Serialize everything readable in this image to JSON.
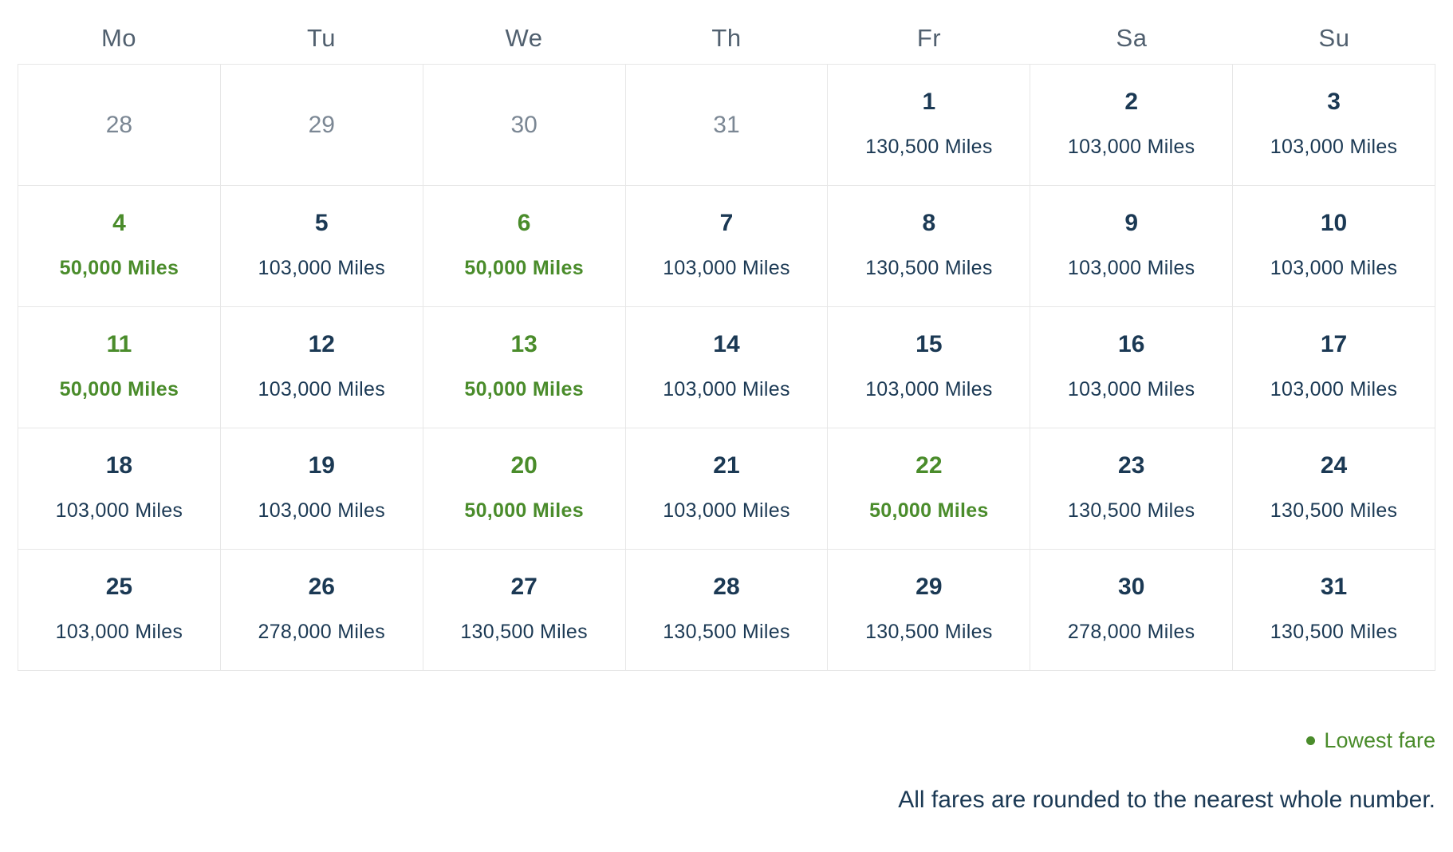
{
  "calendar": {
    "weekday_headers": [
      "Mo",
      "Tu",
      "We",
      "Th",
      "Fr",
      "Sa",
      "Su"
    ],
    "weeks": [
      [
        {
          "day": "28",
          "fare": "",
          "type": "outside"
        },
        {
          "day": "29",
          "fare": "",
          "type": "outside"
        },
        {
          "day": "30",
          "fare": "",
          "type": "outside"
        },
        {
          "day": "31",
          "fare": "",
          "type": "outside"
        },
        {
          "day": "1",
          "fare": "130,500 Miles",
          "type": "regular"
        },
        {
          "day": "2",
          "fare": "103,000 Miles",
          "type": "regular"
        },
        {
          "day": "3",
          "fare": "103,000 Miles",
          "type": "regular"
        }
      ],
      [
        {
          "day": "4",
          "fare": "50,000 Miles",
          "type": "lowest"
        },
        {
          "day": "5",
          "fare": "103,000 Miles",
          "type": "regular"
        },
        {
          "day": "6",
          "fare": "50,000 Miles",
          "type": "lowest"
        },
        {
          "day": "7",
          "fare": "103,000 Miles",
          "type": "regular"
        },
        {
          "day": "8",
          "fare": "130,500 Miles",
          "type": "regular"
        },
        {
          "day": "9",
          "fare": "103,000 Miles",
          "type": "regular"
        },
        {
          "day": "10",
          "fare": "103,000 Miles",
          "type": "regular"
        }
      ],
      [
        {
          "day": "11",
          "fare": "50,000 Miles",
          "type": "lowest"
        },
        {
          "day": "12",
          "fare": "103,000 Miles",
          "type": "regular"
        },
        {
          "day": "13",
          "fare": "50,000 Miles",
          "type": "lowest"
        },
        {
          "day": "14",
          "fare": "103,000 Miles",
          "type": "regular"
        },
        {
          "day": "15",
          "fare": "103,000 Miles",
          "type": "regular"
        },
        {
          "day": "16",
          "fare": "103,000 Miles",
          "type": "regular"
        },
        {
          "day": "17",
          "fare": "103,000 Miles",
          "type": "regular"
        }
      ],
      [
        {
          "day": "18",
          "fare": "103,000 Miles",
          "type": "regular"
        },
        {
          "day": "19",
          "fare": "103,000 Miles",
          "type": "regular"
        },
        {
          "day": "20",
          "fare": "50,000 Miles",
          "type": "lowest"
        },
        {
          "day": "21",
          "fare": "103,000 Miles",
          "type": "regular"
        },
        {
          "day": "22",
          "fare": "50,000 Miles",
          "type": "lowest"
        },
        {
          "day": "23",
          "fare": "130,500 Miles",
          "type": "regular"
        },
        {
          "day": "24",
          "fare": "130,500 Miles",
          "type": "regular"
        }
      ],
      [
        {
          "day": "25",
          "fare": "103,000 Miles",
          "type": "regular"
        },
        {
          "day": "26",
          "fare": "278,000 Miles",
          "type": "regular"
        },
        {
          "day": "27",
          "fare": "130,500 Miles",
          "type": "regular"
        },
        {
          "day": "28",
          "fare": "130,500 Miles",
          "type": "regular"
        },
        {
          "day": "29",
          "fare": "130,500 Miles",
          "type": "regular"
        },
        {
          "day": "30",
          "fare": "278,000 Miles",
          "type": "regular"
        },
        {
          "day": "31",
          "fare": "130,500 Miles",
          "type": "regular"
        }
      ]
    ],
    "legend": {
      "lowest_fare_label": "Lowest fare"
    },
    "footnote": "All fares are rounded to the nearest whole number."
  },
  "colors": {
    "lowest_fare_green": "#4a8c2b",
    "fare_navy": "#1b3954",
    "muted_gray": "#7b8794",
    "header_gray": "#51606f",
    "grid_border": "#e7e7e7"
  }
}
